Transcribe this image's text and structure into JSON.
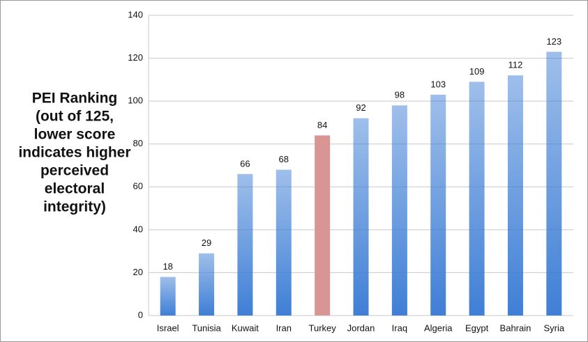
{
  "chart_data": {
    "type": "bar",
    "ylabel": [
      "PEI Ranking",
      "(out of 125,",
      "lower score",
      "indicates higher",
      "perceived",
      "electoral",
      "integrity)"
    ],
    "categories": [
      "Israel",
      "Tunisia",
      "Kuwait",
      "Iran",
      "Turkey",
      "Jordan",
      "Iraq",
      "Algeria",
      "Egypt",
      "Bahrain",
      "Syria"
    ],
    "values": [
      18,
      29,
      66,
      68,
      84,
      92,
      98,
      103,
      109,
      112,
      123
    ],
    "colors": [
      "#3f7fd6",
      "#3f7fd6",
      "#3f7fd6",
      "#3f7fd6",
      "#d99594",
      "#3f7fd6",
      "#3f7fd6",
      "#3f7fd6",
      "#3f7fd6",
      "#3f7fd6",
      "#3f7fd6"
    ],
    "gradient": [
      true,
      true,
      true,
      true,
      false,
      true,
      true,
      true,
      true,
      true,
      true
    ],
    "ylim": [
      0,
      140
    ],
    "yticks": [
      0,
      20,
      40,
      60,
      80,
      100,
      120,
      140
    ],
    "grid": true
  }
}
